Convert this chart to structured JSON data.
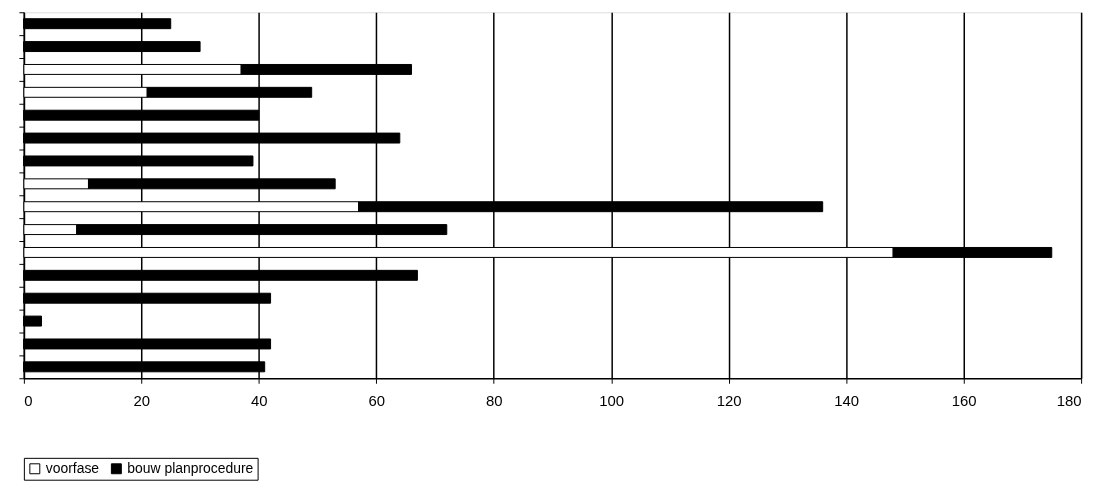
{
  "chart_data": {
    "type": "bar",
    "orientation": "horizontal",
    "stacked": true,
    "categories": [
      null,
      null,
      null,
      null,
      null,
      null,
      null,
      null,
      null,
      null,
      null,
      null,
      null,
      null,
      null,
      null
    ],
    "series": [
      {
        "name": "voorfase",
        "color": "#ffffff",
        "values": [
          0,
          0,
          37,
          21,
          0,
          0,
          0,
          11,
          57,
          9,
          148,
          0,
          0,
          0,
          0,
          0
        ]
      },
      {
        "name": "bouw planprocedure",
        "color": "#000000",
        "values": [
          25,
          30,
          29,
          28,
          40,
          64,
          39,
          42,
          79,
          63,
          27,
          67,
          42,
          3,
          42,
          41
        ]
      }
    ],
    "xlim": [
      0,
      180
    ],
    "xticks": [
      0,
      20,
      40,
      60,
      80,
      100,
      120,
      140,
      160,
      180
    ],
    "grid": "x",
    "legend": "bottom",
    "tick_labels": "x"
  }
}
